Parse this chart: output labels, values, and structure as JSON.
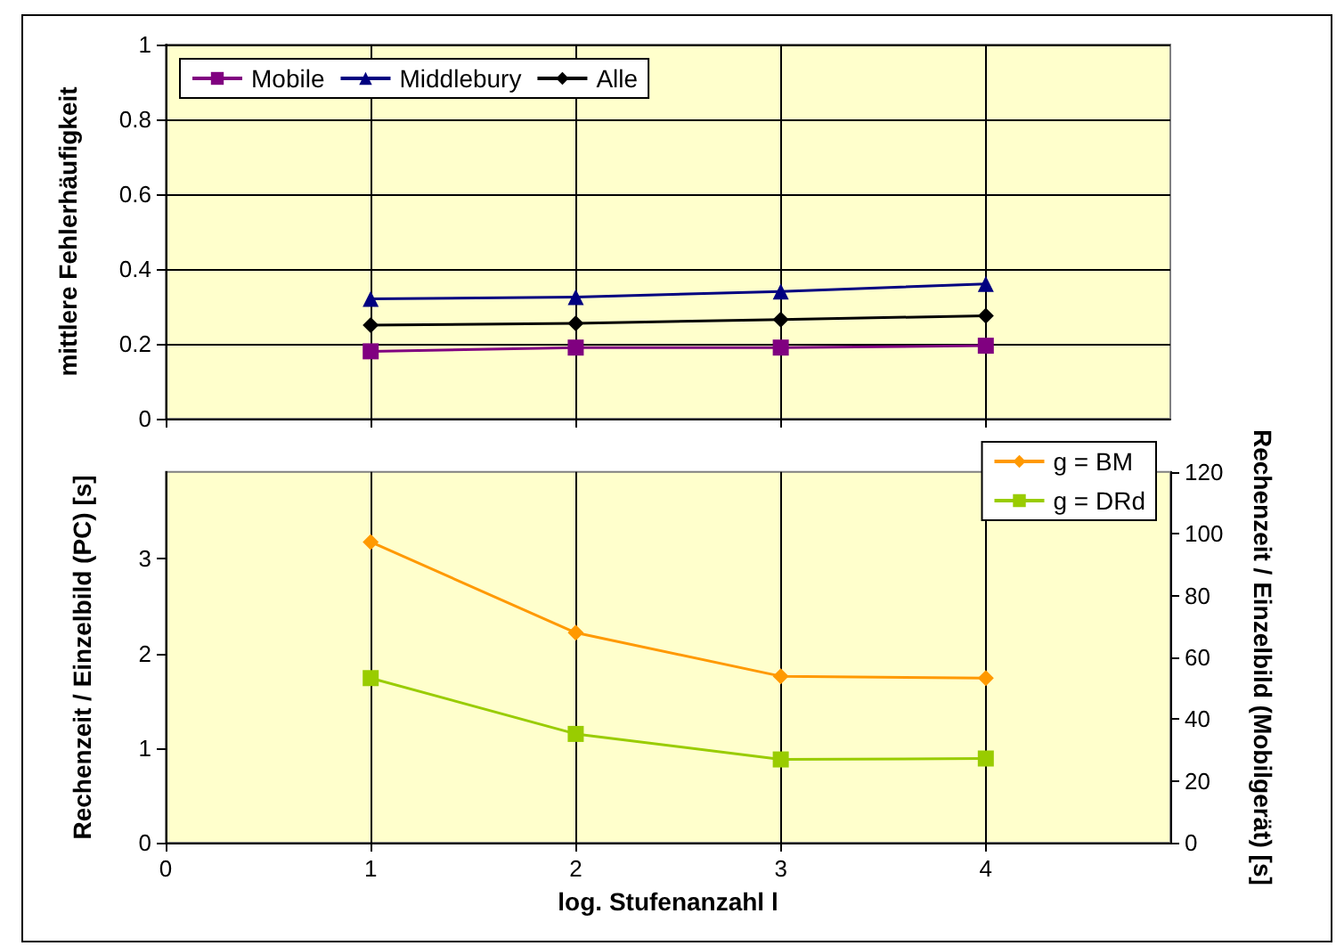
{
  "chart_data": [
    {
      "type": "line",
      "ylabel": "mittlere Fehlerhäufigkeit",
      "x": [
        1,
        2,
        3,
        4
      ],
      "xlim": [
        0,
        4.9
      ],
      "xticks": [
        0,
        1,
        2,
        3,
        4
      ],
      "ylim": [
        0,
        1
      ],
      "yticks": [
        0,
        0.2,
        0.4,
        0.6,
        0.8,
        1
      ],
      "tick_labels": "y",
      "grid": true,
      "legend": "top left",
      "series": [
        {
          "name": "Mobile",
          "color": "#800080",
          "marker": "square",
          "values": [
            0.18,
            0.19,
            0.19,
            0.195
          ]
        },
        {
          "name": "Middlebury",
          "color": "#000080",
          "marker": "triangle",
          "values": [
            0.32,
            0.325,
            0.34,
            0.36
          ]
        },
        {
          "name": "Alle",
          "color": "#000000",
          "marker": "diamond",
          "values": [
            0.25,
            0.255,
            0.265,
            0.275
          ]
        }
      ]
    },
    {
      "type": "line",
      "xlabel": "log. Stufenanzahl l",
      "ylabel": "Rechenzeit / Einzelbild (PC) [s]",
      "y2label": "Rechenzeit / Einzelbild (Mobilgerät) [s]",
      "x": [
        1,
        2,
        3,
        4
      ],
      "xlim": [
        0,
        4.9
      ],
      "xticks": [
        0,
        1,
        2,
        3,
        4
      ],
      "ylim": [
        0,
        3.92
      ],
      "yticks": [
        0,
        1,
        2,
        3
      ],
      "y2lim": [
        0,
        120
      ],
      "y2ticks": [
        0,
        20,
        40,
        60,
        80,
        100,
        120
      ],
      "grid": "x",
      "legend": "top right",
      "series": [
        {
          "name": "g = BM",
          "color": "#ff9900",
          "marker": "diamond",
          "values": [
            3.18,
            2.22,
            1.76,
            1.74
          ]
        },
        {
          "name": "g = DRd",
          "color": "#99cc00",
          "marker": "square",
          "values": [
            1.74,
            1.15,
            0.88,
            0.89
          ]
        }
      ]
    }
  ]
}
